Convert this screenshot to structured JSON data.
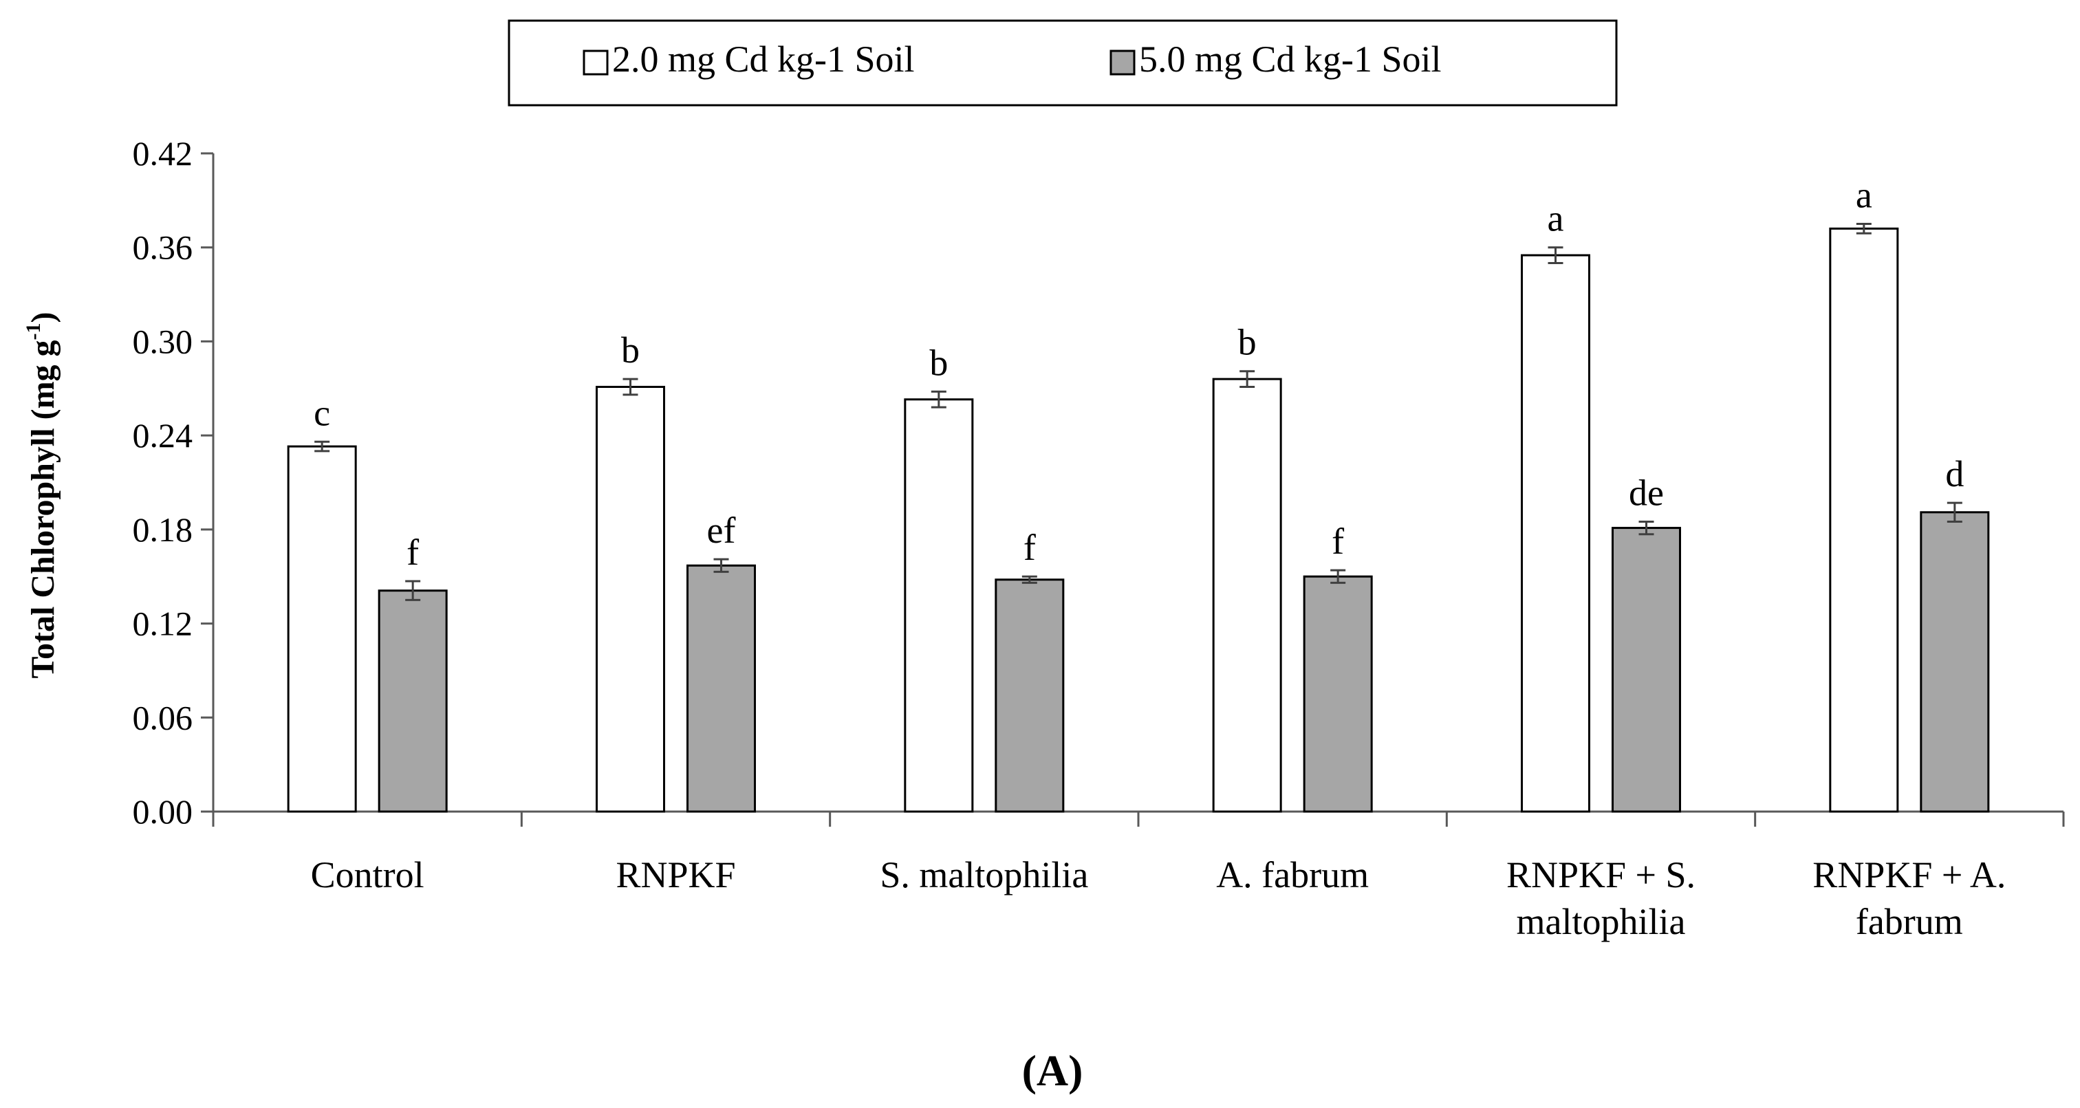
{
  "chart_data": {
    "type": "bar",
    "title": "",
    "panel_label": "(A)",
    "ylabel": "Total Chlorophyll (mg g",
    "ylabel_sup": "-1",
    "ylabel_close": ")",
    "xlabel": "",
    "ylim": [
      0,
      0.42
    ],
    "yticks": [
      "0.00",
      "0.06",
      "0.12",
      "0.18",
      "0.24",
      "0.30",
      "0.36",
      "0.42"
    ],
    "grid": false,
    "legend_position": "top-center",
    "categories": [
      [
        "Control"
      ],
      [
        "RNPKF"
      ],
      [
        "S. maltophilia"
      ],
      [
        "A. fabrum"
      ],
      [
        "RNPKF + S.",
        "maltophilia"
      ],
      [
        "RNPKF + A.",
        "fabrum"
      ]
    ],
    "series": [
      {
        "name": "2.0 mg Cd kg-1 Soil",
        "color": "#ffffff",
        "values": [
          0.233,
          0.271,
          0.263,
          0.276,
          0.355,
          0.372
        ],
        "errors": [
          0.003,
          0.005,
          0.005,
          0.005,
          0.005,
          0.003
        ],
        "letters": [
          "c",
          "b",
          "b",
          "b",
          "a",
          "a"
        ]
      },
      {
        "name": "5.0 mg Cd kg-1 Soil",
        "color": "#a6a6a6",
        "values": [
          0.141,
          0.157,
          0.148,
          0.15,
          0.181,
          0.191
        ],
        "errors": [
          0.006,
          0.004,
          0.002,
          0.004,
          0.004,
          0.006
        ],
        "letters": [
          "f",
          "ef",
          "f",
          "f",
          "de",
          "d"
        ]
      }
    ],
    "colors": {
      "axis": "#595959",
      "bar_stroke": "#000000",
      "error_bar": "#404040",
      "text": "#000000"
    }
  }
}
